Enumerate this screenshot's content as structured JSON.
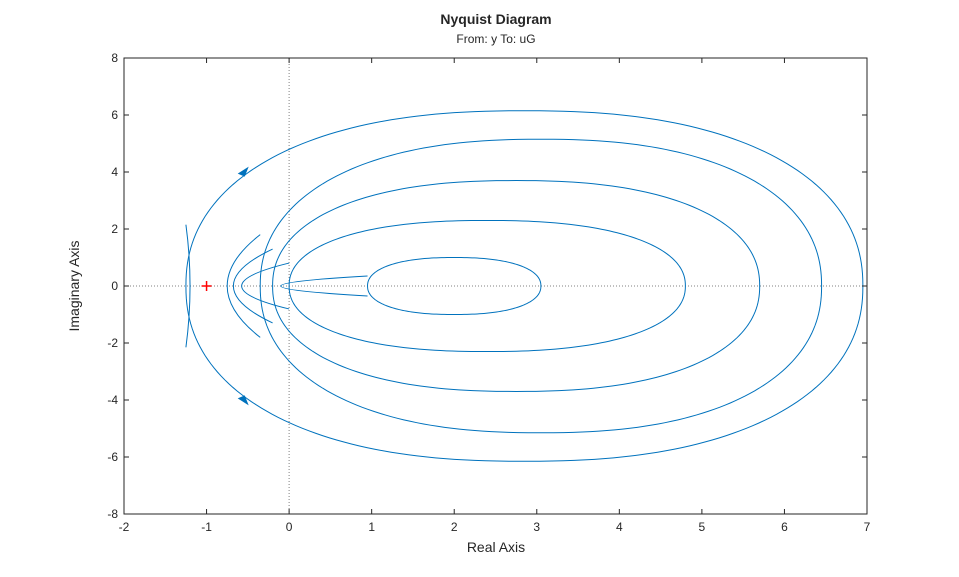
{
  "chart_data": {
    "type": "line",
    "title": "Nyquist Diagram",
    "subtitle": "From: y  To: uG",
    "xlabel": "Real Axis",
    "ylabel": "Imaginary Axis",
    "xlim": [
      -2,
      7
    ],
    "ylim": [
      -8,
      8
    ],
    "xticks": [
      -2,
      -1,
      0,
      1,
      2,
      3,
      4,
      5,
      6,
      7
    ],
    "yticks": [
      -8,
      -6,
      -4,
      -2,
      0,
      2,
      4,
      6,
      8
    ],
    "grid": false,
    "critical_point": [
      -1,
      0
    ],
    "line_color": "#0072BD",
    "critical_color": "#FF0000",
    "zero_line_color": "#808080",
    "series": [
      {
        "loops": [
          {
            "cx": 2.0,
            "cy": 0.0,
            "rx": 1.05,
            "ry": 1.0
          },
          {
            "cx": 2.4,
            "cy": 0.0,
            "rx": 2.4,
            "ry": 2.3
          },
          {
            "cx": 2.75,
            "cy": 0.0,
            "rx": 2.95,
            "ry": 3.7
          },
          {
            "cx": 3.05,
            "cy": 0.0,
            "rx": 3.4,
            "ry": 5.15
          },
          {
            "cx": 2.85,
            "cy": 0.0,
            "rx": 4.1,
            "ry": 6.15
          }
        ],
        "arrows": [
          [
            -0.55,
            4.05
          ],
          [
            -0.55,
            -4.05
          ]
        ]
      }
    ]
  }
}
